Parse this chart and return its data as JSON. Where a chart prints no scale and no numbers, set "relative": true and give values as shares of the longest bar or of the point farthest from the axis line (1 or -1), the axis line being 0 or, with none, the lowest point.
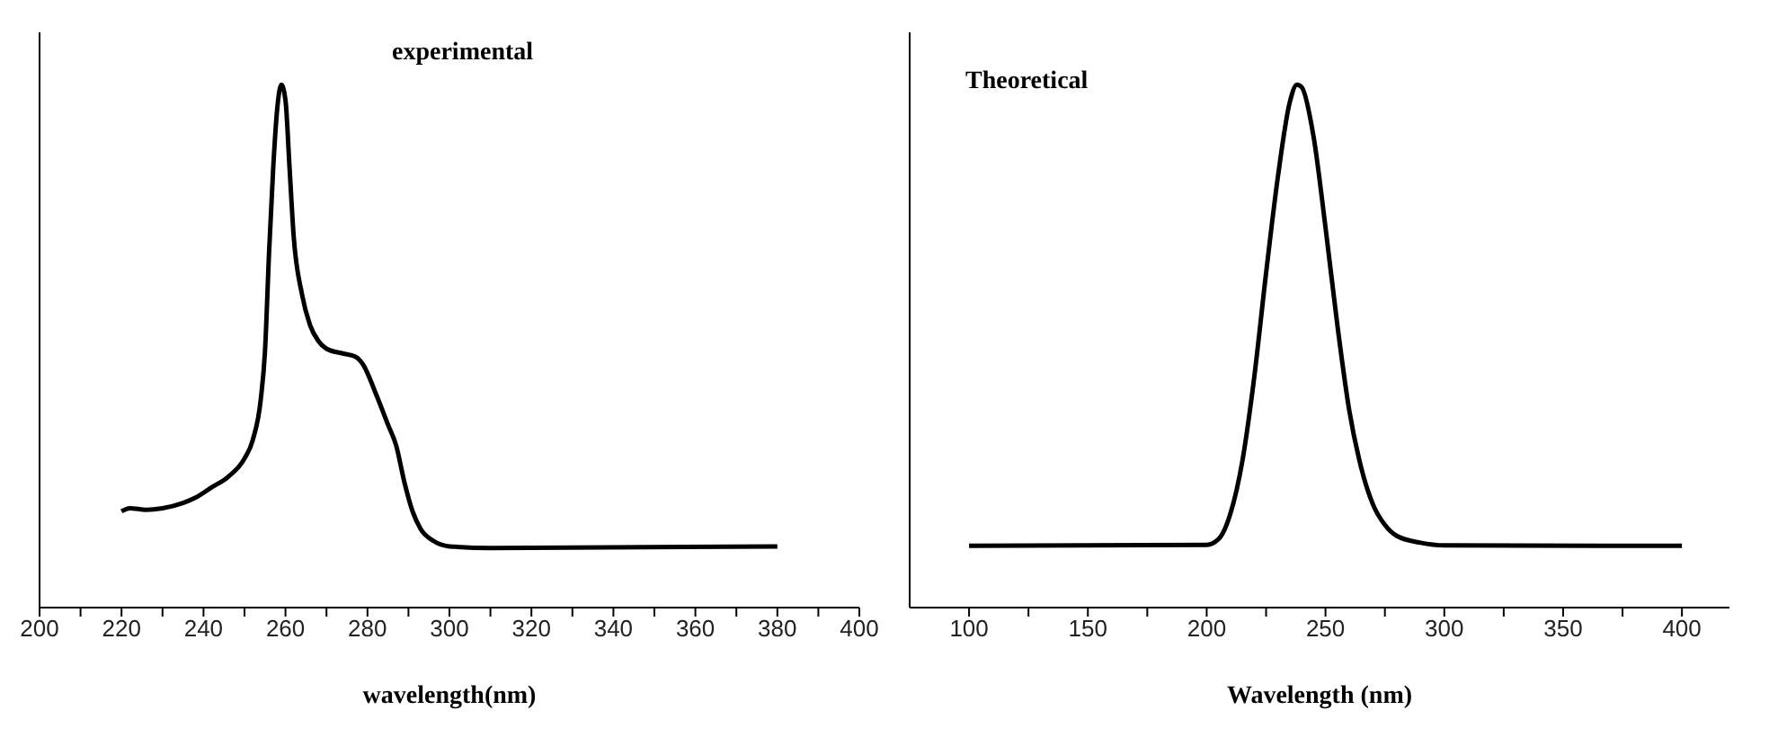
{
  "chart_data": [
    {
      "type": "line",
      "relative": true,
      "xlabel": "wavelength(nm)",
      "annotations": [
        "experimental"
      ],
      "xlim": [
        200,
        400
      ],
      "xticks": [
        200,
        {
          "value": 210,
          "label": null
        },
        220,
        {
          "value": 230,
          "label": null
        },
        240,
        {
          "value": 250,
          "label": null
        },
        260,
        {
          "value": 270,
          "label": null
        },
        280,
        {
          "value": 290,
          "label": null
        },
        300,
        {
          "value": 310,
          "label": null
        },
        320,
        {
          "value": 330,
          "label": null
        },
        340,
        {
          "value": 350,
          "label": null
        },
        360,
        {
          "value": 370,
          "label": null
        },
        380,
        {
          "value": 390,
          "label": null
        },
        400
      ],
      "series": [
        {
          "color": "#000000",
          "x": [
            220,
            222,
            226,
            230,
            235,
            238,
            242,
            246,
            250,
            252,
            254,
            255,
            256,
            257,
            258,
            259,
            260,
            261,
            262,
            264,
            266,
            268,
            270,
            274,
            277,
            279,
            282,
            285,
            287,
            289,
            291,
            293,
            296,
            300,
            310,
            380
          ],
          "values": [
            0.184,
            0.19,
            0.187,
            0.19,
            0.2,
            0.21,
            0.23,
            0.25,
            0.285,
            0.32,
            0.4,
            0.49,
            0.68,
            0.84,
            0.955,
            1.0,
            0.97,
            0.84,
            0.71,
            0.6,
            0.54,
            0.51,
            0.495,
            0.486,
            0.48,
            0.464,
            0.41,
            0.35,
            0.31,
            0.24,
            0.184,
            0.15,
            0.128,
            0.117,
            0.114,
            0.117
          ]
        }
      ],
      "grid": false,
      "legend": false,
      "marker": "none",
      "line_style": "solid"
    },
    {
      "type": "line",
      "relative": true,
      "xlabel": "Wavelength (nm)",
      "annotations": [
        "Theoretical"
      ],
      "xlim": [
        75,
        420
      ],
      "xticks": [
        100,
        {
          "value": 125,
          "label": null
        },
        150,
        {
          "value": 175,
          "label": null
        },
        200,
        {
          "value": 225,
          "label": null
        },
        250,
        {
          "value": 275,
          "label": null
        },
        300,
        {
          "value": 325,
          "label": null
        },
        350,
        {
          "value": 375,
          "label": null
        },
        400
      ],
      "series": [
        {
          "color": "#000000",
          "x": [
            100,
            200,
            205,
            210,
            215,
            220,
            225,
            230,
            235,
            238,
            240,
            245,
            250,
            255,
            260,
            265,
            270,
            275,
            280,
            290,
            300,
            400
          ],
          "values": [
            0.118,
            0.12,
            0.131,
            0.18,
            0.28,
            0.44,
            0.64,
            0.825,
            0.967,
            1.0,
            0.995,
            0.9,
            0.727,
            0.54,
            0.377,
            0.268,
            0.197,
            0.158,
            0.137,
            0.124,
            0.119,
            0.118
          ]
        }
      ],
      "grid": false,
      "legend": false,
      "marker": "none",
      "line_style": "solid"
    }
  ]
}
